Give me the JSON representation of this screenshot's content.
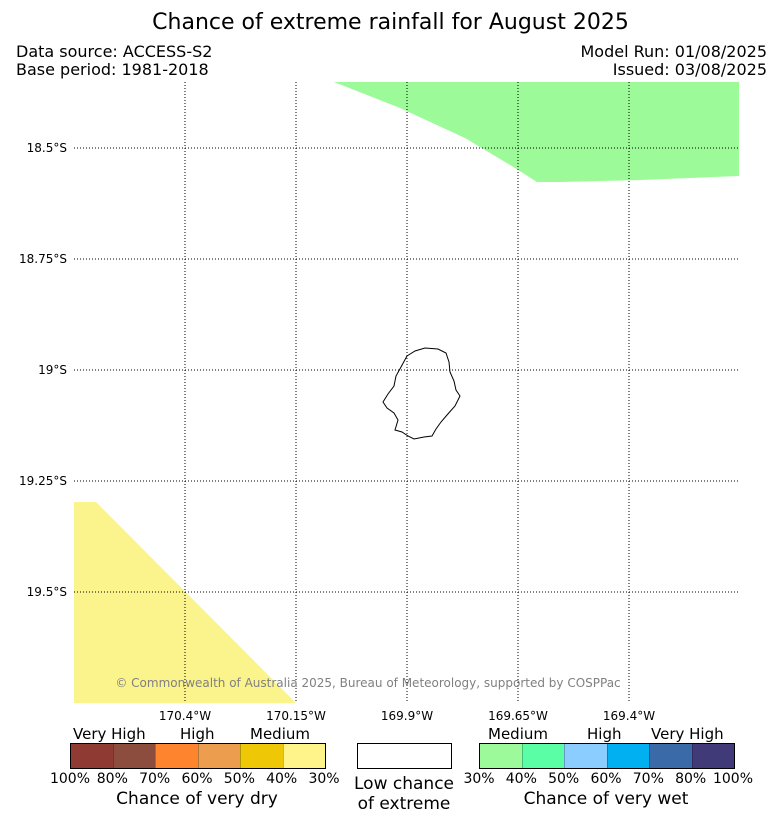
{
  "header": {
    "title": "Chance of extreme rainfall for August 2025",
    "data_source": "Data source: ACCESS-S2",
    "base_period": "Base period: 1981-2018",
    "model_run": "Model Run: 01/08/2025",
    "issued": "Issued: 03/08/2025"
  },
  "map": {
    "lat_labels": [
      "18.5°S",
      "18.75°S",
      "19°S",
      "19.25°S",
      "19.5°S"
    ],
    "lon_labels": [
      "170.4°W",
      "170.15°W",
      "169.9°W",
      "169.65°W",
      "169.4°W"
    ],
    "copyright": "© Commonwealth of Australia 2025, Bureau of Meteorology, supported by COSPPac",
    "wet_region_color": "#9dfa99",
    "dry_region_color": "#fbf38c"
  },
  "legend": {
    "dry": {
      "levels": [
        "Very High",
        "High",
        "Medium"
      ],
      "colors": [
        "#8f3a33",
        "#8c4c3e",
        "#fe842d",
        "#ed9d4e",
        "#eec707",
        "#fef48a"
      ],
      "ticks": [
        "100%",
        "80%",
        "70%",
        "60%",
        "50%",
        "40%",
        "30%"
      ],
      "caption": "Chance of very dry"
    },
    "low": {
      "caption_line1": "Low chance",
      "caption_line2": "of extreme"
    },
    "wet": {
      "levels": [
        "Medium",
        "High",
        "Very High"
      ],
      "colors": [
        "#9cfa9a",
        "#5afea5",
        "#8acdfe",
        "#00b0f0",
        "#3a6ba8",
        "#403a78"
      ],
      "ticks": [
        "30%",
        "40%",
        "50%",
        "60%",
        "70%",
        "80%",
        "100%"
      ],
      "caption": "Chance of very wet"
    }
  }
}
